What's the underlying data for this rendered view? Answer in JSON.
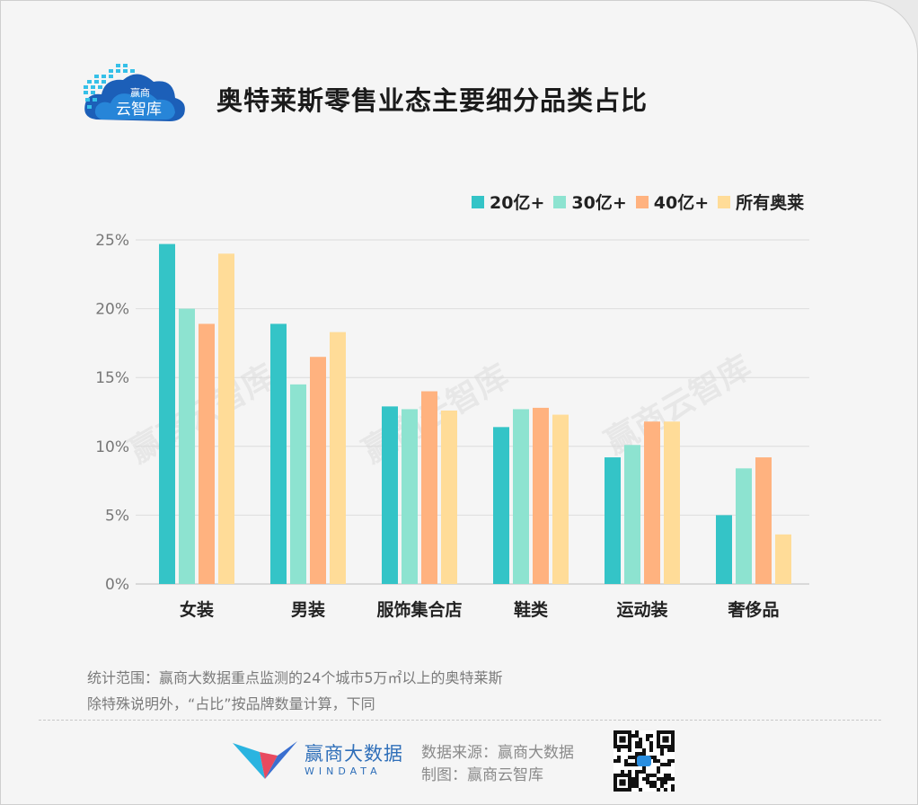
{
  "header": {
    "logo_text_top": "赢商",
    "logo_text_main": "云智库",
    "title": "奥特莱斯零售业态主要细分品类占比"
  },
  "watermark": "赢商云智库",
  "notes": {
    "line1": "统计范围：赢商大数据重点监测的24个城市5万㎡以上的奥特莱斯",
    "line2": "除特殊说明外，“占比”按品牌数量计算，下同"
  },
  "footer": {
    "brand_cn": "赢商大数据",
    "brand_en": "WINDATA",
    "source": "数据来源：赢商大数据",
    "made_by": "制图：赢商云智库"
  },
  "colors": {
    "teal": "#34c4c7",
    "mint": "#8de3d0",
    "orange": "#ffb27f",
    "yellow": "#ffdc98",
    "brand_blue": "#2f6fb9"
  },
  "chart_data": {
    "type": "bar",
    "title": "奥特莱斯零售业态主要细分品类占比",
    "categories": [
      "女装",
      "男装",
      "服饰集合店",
      "鞋类",
      "运动装",
      "奢侈品"
    ],
    "series": [
      {
        "name": "20亿+",
        "color": "#34c4c7",
        "values": [
          24.7,
          18.9,
          12.9,
          11.4,
          9.2,
          5.0
        ]
      },
      {
        "name": "30亿+",
        "color": "#8de3d0",
        "values": [
          20.0,
          14.5,
          12.7,
          12.7,
          10.1,
          8.4
        ]
      },
      {
        "name": "40亿+",
        "color": "#ffb27f",
        "values": [
          18.9,
          16.5,
          14.0,
          12.8,
          11.8,
          9.2
        ]
      },
      {
        "name": "所有奥莱",
        "color": "#ffdc98",
        "values": [
          24.0,
          18.3,
          12.6,
          12.3,
          11.8,
          3.6
        ]
      }
    ],
    "ylim": [
      0,
      25
    ],
    "yticks": [
      "0%",
      "5%",
      "10%",
      "15%",
      "20%",
      "25%"
    ],
    "grid": true,
    "legend_position": "top-right"
  }
}
